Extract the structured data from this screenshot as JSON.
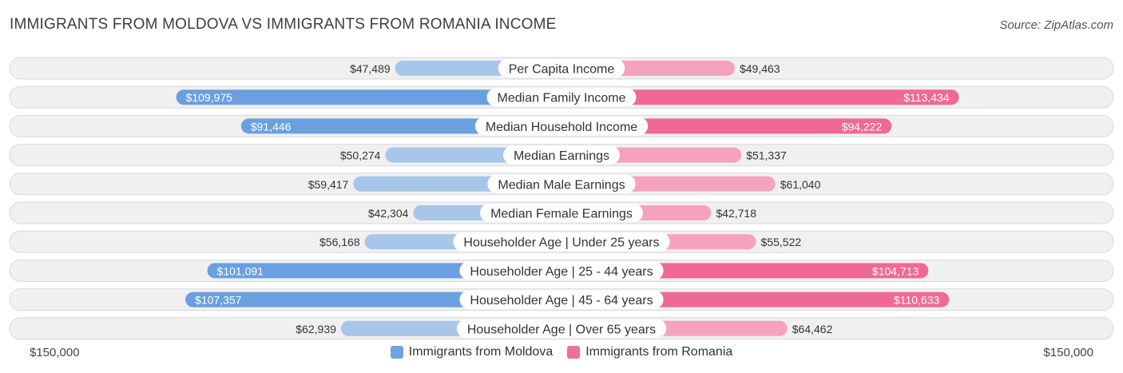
{
  "title": "IMMIGRANTS FROM MOLDOVA VS IMMIGRANTS FROM ROMANIA INCOME",
  "source": "Source: ZipAtlas.com",
  "colors": {
    "moldova_strong": "#6a9fe0",
    "moldova_light": "#a7c6ea",
    "romania_strong": "#f06994",
    "romania_light": "#f5a3bd",
    "row_background": "#f0f0f0",
    "row_border": "#d9d9d9"
  },
  "chart_data": {
    "type": "bar",
    "orientation": "horizontal-diverging",
    "categories": [
      "Per Capita Income",
      "Median Family Income",
      "Median Household Income",
      "Median Earnings",
      "Median Male Earnings",
      "Median Female Earnings",
      "Householder Age | Under 25 years",
      "Householder Age | 25 - 44 years",
      "Householder Age | 45 - 64 years",
      "Householder Age | Over 65 years"
    ],
    "series": [
      {
        "name": "Immigrants from Moldova",
        "side": "left",
        "values": [
          47489,
          109975,
          91446,
          50274,
          59417,
          42304,
          56168,
          101091,
          107357,
          62939
        ],
        "labels": [
          "$47,489",
          "$109,975",
          "$91,446",
          "$50,274",
          "$59,417",
          "$42,304",
          "$56,168",
          "$101,091",
          "$107,357",
          "$62,939"
        ]
      },
      {
        "name": "Immigrants from Romania",
        "side": "right",
        "values": [
          49463,
          113434,
          94222,
          51337,
          61040,
          42718,
          55522,
          104713,
          110633,
          64462
        ],
        "labels": [
          "$49,463",
          "$113,434",
          "$94,222",
          "$51,337",
          "$61,040",
          "$42,718",
          "$55,522",
          "$104,713",
          "$110,633",
          "$64,462"
        ]
      }
    ],
    "xlim": [
      0,
      150000
    ],
    "axis_labels": {
      "left": "$150,000",
      "right": "$150,000"
    },
    "legend_placement": "bottom-center",
    "strong_threshold": 80000
  }
}
